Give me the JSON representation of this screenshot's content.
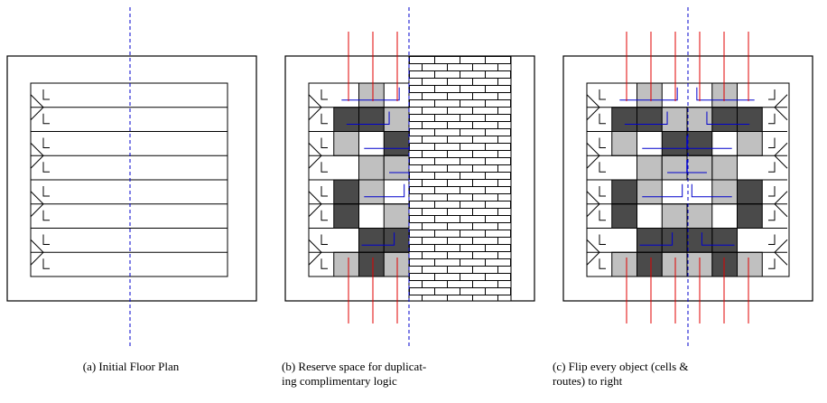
{
  "captions": [
    {
      "lines": [
        "(a) Initial Floor Plan"
      ]
    },
    {
      "lines": [
        "(b) Reserve space for duplicat-",
        "ing complimentary logic"
      ]
    },
    {
      "lines": [
        "(c) Flip every object (cells &",
        "routes) to right"
      ]
    }
  ]
}
